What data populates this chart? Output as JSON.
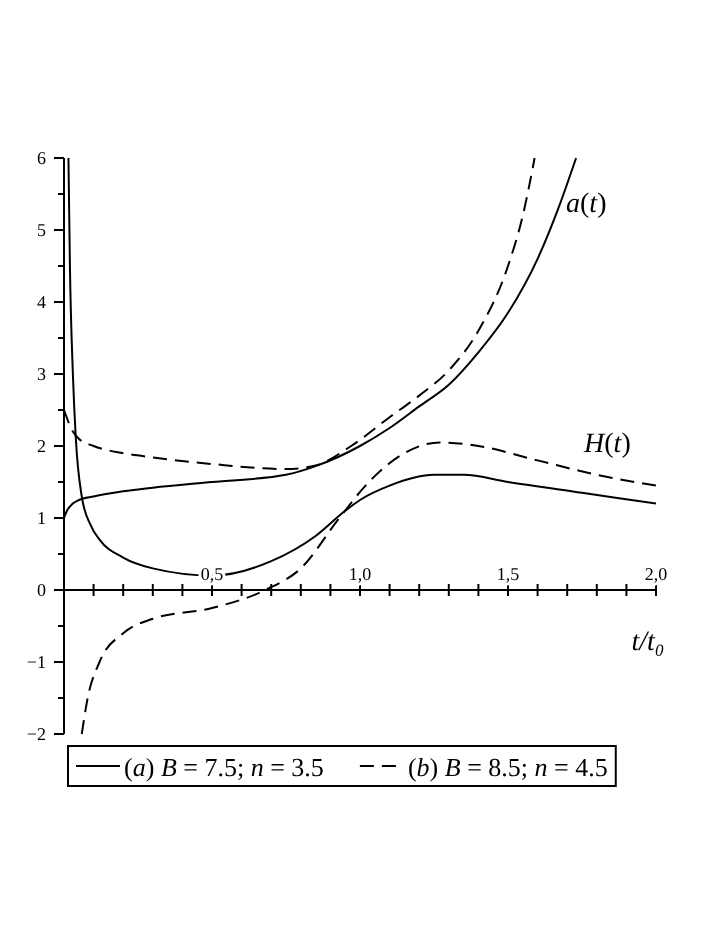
{
  "chart_data": {
    "type": "line",
    "xlabel": "t/t₀",
    "xlim": [
      0,
      2
    ],
    "ylim": [
      -2,
      6
    ],
    "xticks": [
      {
        "value": 0.1,
        "label": null
      },
      {
        "value": 0.2,
        "label": null
      },
      {
        "value": 0.3,
        "label": null
      },
      {
        "value": 0.4,
        "label": null
      },
      {
        "value": 0.5,
        "label": "0,5"
      },
      {
        "value": 0.6,
        "label": null
      },
      {
        "value": 0.7,
        "label": null
      },
      {
        "value": 0.8,
        "label": null
      },
      {
        "value": 0.9,
        "label": null
      },
      {
        "value": 1,
        "label": "1,0"
      },
      {
        "value": 1.1,
        "label": null
      },
      {
        "value": 1.2,
        "label": null
      },
      {
        "value": 1.3,
        "label": null
      },
      {
        "value": 1.4,
        "label": null
      },
      {
        "value": 1.5,
        "label": "1,5"
      },
      {
        "value": 1.6,
        "label": null
      },
      {
        "value": 1.7,
        "label": null
      },
      {
        "value": 1.8,
        "label": null
      },
      {
        "value": 1.9,
        "label": null
      },
      {
        "value": 2,
        "label": "2,0"
      }
    ],
    "yticks": [
      -2,
      {
        "value": -1.5,
        "label": null
      },
      -1,
      {
        "value": -0.5,
        "label": null
      },
      0,
      {
        "value": 0.5,
        "label": null
      },
      1,
      {
        "value": 1.5,
        "label": null
      },
      2,
      {
        "value": 2.5,
        "label": null
      },
      3,
      {
        "value": 3.5,
        "label": null
      },
      4,
      {
        "value": 4.5,
        "label": null
      },
      5,
      {
        "value": 5.5,
        "label": null
      },
      6
    ],
    "legend": "bottom",
    "marker": "none",
    "annotations": [
      "a(t)",
      "H(t)"
    ],
    "series": [
      {
        "name": "(a) B = 7.5; n = 3.5",
        "color": "#000000",
        "line_style": "solid",
        "x": [
          0,
          0.01,
          0.03,
          0.05,
          0.1,
          0.2,
          0.3,
          0.5,
          0.75,
          0.85,
          1.0,
          1.1,
          1.2,
          1.3,
          1.4,
          1.5,
          1.6,
          1.67,
          1.73
        ],
        "values": [
          1,
          1.1,
          1.2,
          1.25,
          1.3,
          1.37,
          1.42,
          1.5,
          1.6,
          1.72,
          2.0,
          2.25,
          2.55,
          2.85,
          3.3,
          3.85,
          4.6,
          5.3,
          6.0
        ]
      },
      {
        "name": "(b) B = 8.5; n = 4.5",
        "color": "#000000",
        "line_style": "dashed",
        "x": [
          0,
          0.03,
          0.05,
          0.1,
          0.2,
          0.3,
          0.5,
          0.75,
          0.85,
          0.97,
          1.1,
          1.2,
          1.3,
          1.4,
          1.5,
          1.55,
          1.59
        ],
        "values": [
          2.5,
          2.2,
          2.1,
          2.0,
          1.9,
          1.84,
          1.75,
          1.68,
          1.73,
          2.0,
          2.4,
          2.7,
          3.05,
          3.6,
          4.5,
          5.2,
          6.0
        ]
      },
      {
        "color": "#000000",
        "line_style": "solid",
        "x": [
          0.015,
          0.02,
          0.03,
          0.04,
          0.06,
          0.09,
          0.12,
          0.2,
          0.3,
          0.5,
          0.7,
          0.85,
          0.95,
          1.0,
          1.1,
          1.25,
          1.35,
          1.5,
          1.75,
          2.0
        ],
        "values": [
          6.0,
          4.5,
          3.0,
          2.1,
          1.3,
          0.9,
          0.7,
          0.45,
          0.3,
          0.2,
          0.4,
          0.75,
          1.1,
          1.25,
          1.45,
          1.6,
          1.6,
          1.5,
          1.35,
          1.2
        ]
      },
      {
        "color": "#000000",
        "line_style": "dashed",
        "x": [
          0.06,
          0.08,
          0.12,
          0.2,
          0.3,
          0.5,
          0.68,
          0.8,
          0.93,
          1.03,
          1.15,
          1.27,
          1.4,
          1.6,
          1.8,
          2.0
        ],
        "values": [
          -2.0,
          -1.5,
          -1.0,
          -0.6,
          -0.4,
          -0.25,
          0,
          0.3,
          1.0,
          1.5,
          1.9,
          2.05,
          2.0,
          1.8,
          1.6,
          1.45
        ]
      }
    ]
  }
}
